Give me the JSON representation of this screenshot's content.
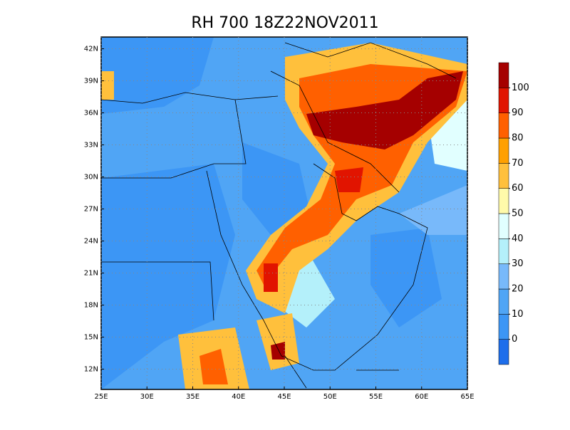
{
  "chart_data": {
    "type": "map",
    "title": "RH 700 18Z22NOV2011",
    "xlim": [
      25,
      65
    ],
    "ylim": [
      10.1,
      43.1
    ],
    "xticks": [
      {
        "value": 25,
        "label": "25E"
      },
      {
        "value": 30,
        "label": "30E"
      },
      {
        "value": 35,
        "label": "35E"
      },
      {
        "value": 40,
        "label": "40E"
      },
      {
        "value": 45,
        "label": "45E"
      },
      {
        "value": 50,
        "label": "50E"
      },
      {
        "value": 55,
        "label": "55E"
      },
      {
        "value": 60,
        "label": "60E"
      },
      {
        "value": 65,
        "label": "65E"
      }
    ],
    "yticks": [
      {
        "value": 12,
        "label": "12N"
      },
      {
        "value": 15,
        "label": "15N"
      },
      {
        "value": 18,
        "label": "18N"
      },
      {
        "value": 21,
        "label": "21N"
      },
      {
        "value": 24,
        "label": "24N"
      },
      {
        "value": 27,
        "label": "27N"
      },
      {
        "value": 30,
        "label": "30N"
      },
      {
        "value": 33,
        "label": "33N"
      },
      {
        "value": 36,
        "label": "36N"
      },
      {
        "value": 39,
        "label": "39N"
      },
      {
        "value": 42,
        "label": "42N"
      }
    ],
    "grid": true,
    "colorbar": {
      "range": [
        -10,
        110
      ],
      "ticks": [
        0,
        10,
        20,
        30,
        40,
        50,
        60,
        70,
        80,
        90,
        100
      ],
      "colors": [
        "#1e6eeb",
        "#3c96f5",
        "#50a5f5",
        "#78b9fa",
        "#b4f0fa",
        "#e1ffff",
        "#fffaaa",
        "#ffc03c",
        "#ffa000",
        "#ff6000",
        "#e11400",
        "#a50000"
      ]
    }
  }
}
